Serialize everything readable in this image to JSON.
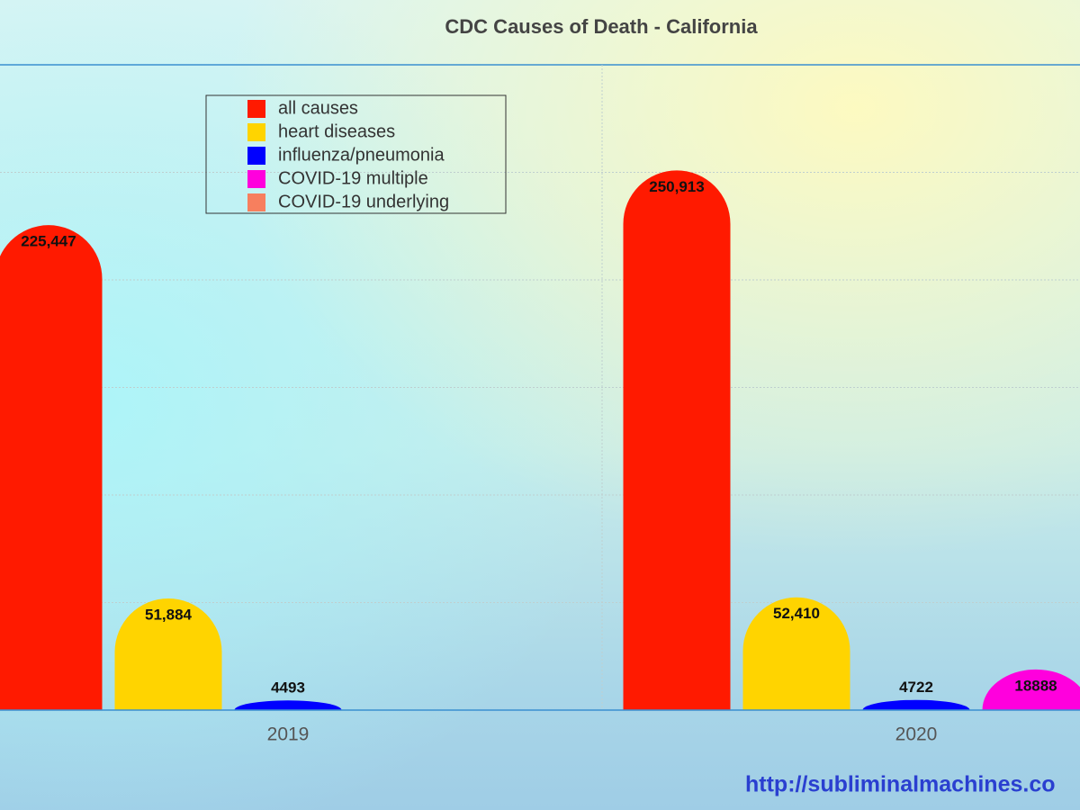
{
  "chart_data": {
    "type": "bar",
    "title": "CDC Causes of Death - California",
    "watermark": "http://subliminalmachines.co",
    "categories": [
      "2019",
      "2020"
    ],
    "series": [
      {
        "name": "all causes",
        "color": "#ff1a00",
        "values": [
          225447,
          250913
        ],
        "value_labels": [
          "225,447",
          "250,913"
        ]
      },
      {
        "name": "heart diseases",
        "color": "#ffd400",
        "values": [
          51884,
          52410
        ],
        "value_labels": [
          "51,884",
          "52,410"
        ]
      },
      {
        "name": "influenza/pneumonia",
        "color": "#0000ff",
        "values": [
          4493,
          4722
        ],
        "value_labels": [
          "4493",
          "4722"
        ]
      },
      {
        "name": "COVID-19 multiple",
        "color": "#ff00dd",
        "values": [
          null,
          18888
        ],
        "value_labels": [
          null,
          "18888"
        ]
      },
      {
        "name": "COVID-19 underlying",
        "color": "#f77f5e",
        "values": [
          null,
          null
        ],
        "value_labels": [
          null,
          null
        ]
      }
    ],
    "ylim": [
      0,
      300000
    ],
    "yticks": [
      0,
      50000,
      100000,
      150000,
      200000,
      250000,
      300000
    ],
    "grid": true,
    "legend": "upper left"
  }
}
